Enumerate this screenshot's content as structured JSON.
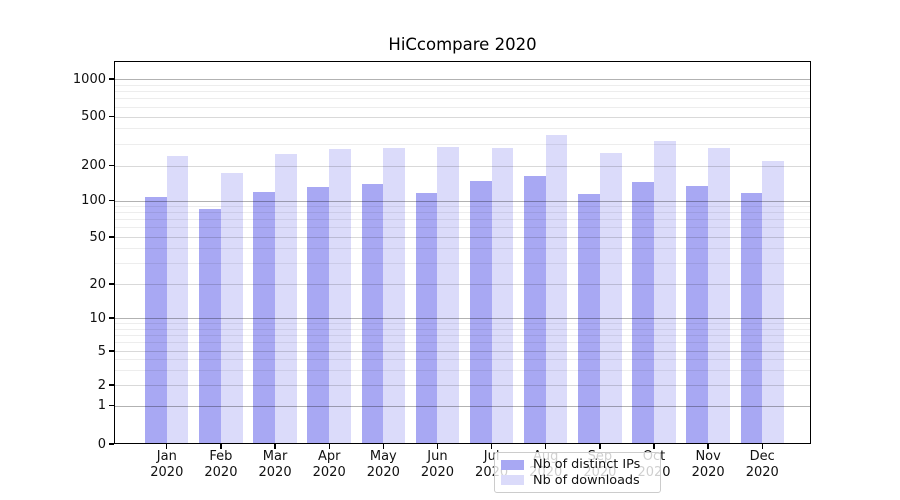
{
  "chart_data": {
    "type": "bar",
    "title": "HiCcompare 2020",
    "categories": [
      "Jan",
      "Feb",
      "Mar",
      "Apr",
      "May",
      "Jun",
      "Jul",
      "Aug",
      "Sep",
      "Oct",
      "Nov",
      "Dec"
    ],
    "x_year_label": "2020",
    "series": [
      {
        "name": "Nb of distinct IPs",
        "color": "#a8a8f3",
        "values": [
          108,
          85,
          118,
          131,
          139,
          115,
          148,
          161,
          113,
          144,
          134,
          115
        ]
      },
      {
        "name": "Nb of downloads",
        "color": "#dbdbfa",
        "values": [
          240,
          172,
          246,
          272,
          280,
          283,
          275,
          352,
          253,
          315,
          276,
          218
        ]
      }
    ],
    "y_ticks": [
      0,
      1,
      2,
      5,
      10,
      20,
      50,
      100,
      200,
      500,
      1000
    ],
    "y_scale": "symlog",
    "ylim": [
      0,
      1400
    ],
    "xlabel": "",
    "ylabel": "",
    "grid": true,
    "legend_position": "lower-center-inside",
    "colors": {
      "grid_decade": "rgba(0,0,0,0.30)",
      "grid_labeled": "rgba(0,0,0,0.15)",
      "grid_minor": "rgba(0,0,0,0.07)",
      "spine": "#000000",
      "background": "#ffffff"
    }
  }
}
